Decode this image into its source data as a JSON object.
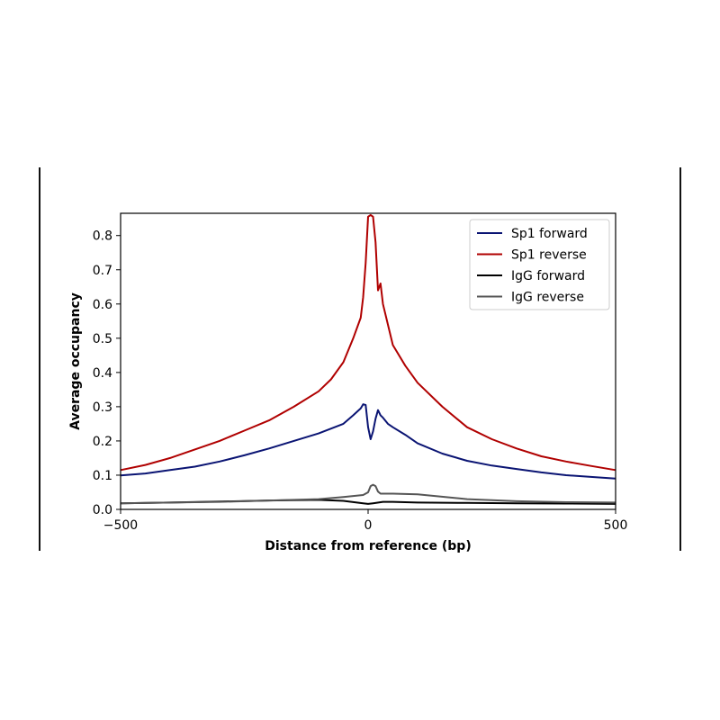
{
  "chart_data": {
    "type": "line",
    "title": "",
    "xlabel": "Distance from reference (bp)",
    "ylabel": "Average occupancy",
    "xlim": [
      -500,
      500
    ],
    "ylim": [
      0,
      0.865
    ],
    "x_ticks": [
      "−500",
      "0",
      "500"
    ],
    "y_ticks": [
      "0.0",
      "0.1",
      "0.2",
      "0.3",
      "0.4",
      "0.5",
      "0.6",
      "0.7",
      "0.8"
    ],
    "grid": false,
    "legend_position": "top-right",
    "series": [
      {
        "name": "Sp1 forward",
        "color": "#0a1473",
        "x": [
          -500,
          -450,
          -400,
          -350,
          -300,
          -250,
          -200,
          -150,
          -100,
          -50,
          -30,
          -15,
          -10,
          -5,
          0,
          5,
          10,
          15,
          20,
          25,
          30,
          40,
          50,
          75,
          100,
          150,
          200,
          250,
          300,
          350,
          400,
          450,
          500
        ],
        "y": [
          0.099,
          0.105,
          0.115,
          0.125,
          0.14,
          0.158,
          0.178,
          0.2,
          0.222,
          0.25,
          0.275,
          0.295,
          0.307,
          0.305,
          0.24,
          0.205,
          0.228,
          0.265,
          0.29,
          0.275,
          0.268,
          0.25,
          0.24,
          0.218,
          0.193,
          0.163,
          0.142,
          0.128,
          0.118,
          0.108,
          0.1,
          0.095,
          0.09
        ]
      },
      {
        "name": "Sp1 reverse",
        "color": "#b00000",
        "x": [
          -500,
          -450,
          -400,
          -350,
          -300,
          -250,
          -200,
          -150,
          -100,
          -75,
          -50,
          -30,
          -15,
          -10,
          -5,
          -2,
          0,
          5,
          10,
          15,
          20,
          25,
          30,
          40,
          50,
          75,
          100,
          150,
          200,
          250,
          300,
          350,
          400,
          450,
          500
        ],
        "y": [
          0.115,
          0.13,
          0.15,
          0.175,
          0.2,
          0.23,
          0.26,
          0.3,
          0.345,
          0.38,
          0.43,
          0.5,
          0.56,
          0.62,
          0.72,
          0.8,
          0.855,
          0.86,
          0.855,
          0.78,
          0.64,
          0.66,
          0.6,
          0.54,
          0.48,
          0.42,
          0.37,
          0.3,
          0.24,
          0.205,
          0.178,
          0.155,
          0.14,
          0.127,
          0.115
        ]
      },
      {
        "name": "IgG forward",
        "color": "#000000",
        "x": [
          -500,
          -400,
          -300,
          -200,
          -100,
          -50,
          -10,
          0,
          10,
          30,
          50,
          100,
          200,
          300,
          400,
          500
        ],
        "y": [
          0.018,
          0.02,
          0.023,
          0.026,
          0.028,
          0.025,
          0.018,
          0.016,
          0.018,
          0.022,
          0.022,
          0.02,
          0.019,
          0.018,
          0.017,
          0.016
        ]
      },
      {
        "name": "IgG reverse",
        "color": "#555555",
        "x": [
          -500,
          -400,
          -300,
          -200,
          -100,
          -50,
          -10,
          0,
          5,
          10,
          15,
          20,
          25,
          50,
          100,
          200,
          300,
          400,
          500
        ],
        "y": [
          0.018,
          0.02,
          0.022,
          0.026,
          0.03,
          0.036,
          0.042,
          0.05,
          0.068,
          0.072,
          0.068,
          0.052,
          0.046,
          0.046,
          0.044,
          0.03,
          0.024,
          0.021,
          0.02
        ]
      }
    ]
  }
}
